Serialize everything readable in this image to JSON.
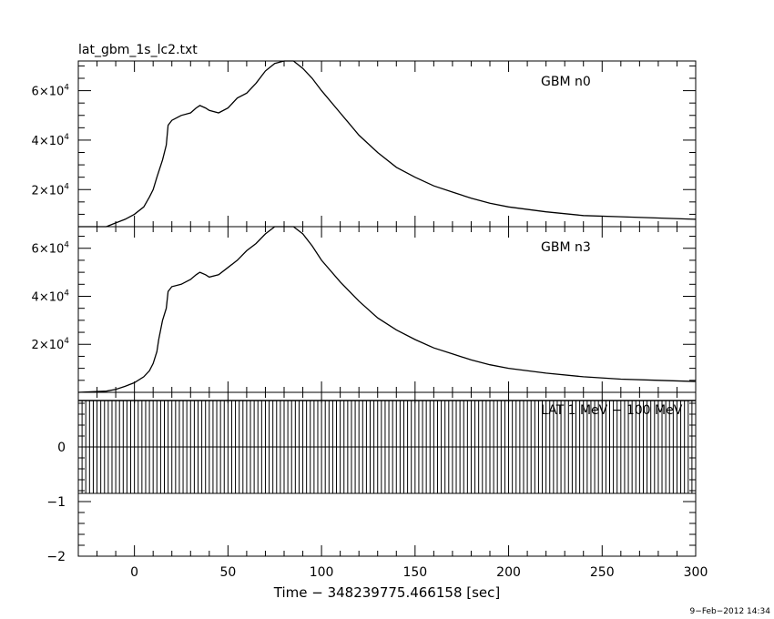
{
  "figure": {
    "title": "lat_gbm_1s_lc2.txt",
    "xlabel": "Time − 348239775.466158 [sec]",
    "timestamp": "9−Feb−2012 14:34"
  },
  "chart_data": [
    {
      "type": "line",
      "panel": "top",
      "title": "lat_gbm_1s_lc2.txt",
      "legend": "GBM n0",
      "xlim": [
        -30,
        300
      ],
      "ylim": [
        5000,
        72000
      ],
      "ytick_values": [
        20000,
        40000,
        60000
      ],
      "ytick_labels": [
        [
          "2",
          "4"
        ],
        [
          "4",
          "4"
        ],
        [
          "6",
          "4"
        ]
      ],
      "grid": false,
      "series": [
        {
          "name": "GBM n0",
          "x": [
            -30,
            -15,
            -10,
            -5,
            0,
            5,
            8,
            10,
            12,
            15,
            17,
            18,
            20,
            25,
            30,
            33,
            35,
            38,
            40,
            45,
            50,
            55,
            60,
            65,
            70,
            75,
            80,
            85,
            90,
            95,
            100,
            110,
            120,
            130,
            140,
            150,
            160,
            170,
            180,
            190,
            200,
            220,
            240,
            260,
            280,
            300
          ],
          "y": [
            4000,
            5000,
            6500,
            8000,
            10000,
            13000,
            17000,
            20000,
            25000,
            32000,
            38000,
            46000,
            48000,
            50000,
            51000,
            53000,
            54000,
            53000,
            52000,
            51000,
            53000,
            57000,
            59000,
            63000,
            68000,
            71000,
            72500,
            72000,
            69000,
            65000,
            60000,
            51000,
            42000,
            35000,
            29000,
            25000,
            21500,
            19000,
            16500,
            14500,
            13000,
            11000,
            9500,
            9000,
            8500,
            8000
          ]
        }
      ]
    },
    {
      "type": "line",
      "panel": "middle",
      "legend": "GBM n3",
      "xlim": [
        -30,
        300
      ],
      "ylim": [
        0,
        69000
      ],
      "ytick_values": [
        20000,
        40000,
        60000
      ],
      "ytick_labels": [
        [
          "2",
          "4"
        ],
        [
          "4",
          "4"
        ],
        [
          "6",
          "4"
        ]
      ],
      "grid": false,
      "series": [
        {
          "name": "GBM n3",
          "x": [
            -30,
            -15,
            -10,
            -5,
            0,
            5,
            8,
            10,
            12,
            13,
            15,
            17,
            18,
            20,
            25,
            30,
            33,
            35,
            38,
            40,
            45,
            50,
            55,
            60,
            65,
            70,
            75,
            80,
            85,
            90,
            95,
            100,
            110,
            120,
            130,
            140,
            150,
            160,
            170,
            180,
            190,
            200,
            220,
            240,
            260,
            280,
            300
          ],
          "y": [
            0,
            500,
            1200,
            2500,
            4000,
            6500,
            9000,
            12000,
            17000,
            22000,
            30000,
            35000,
            42000,
            44000,
            45000,
            47000,
            49000,
            50000,
            49000,
            48000,
            49000,
            52000,
            55000,
            59000,
            62000,
            66000,
            69000,
            70000,
            69500,
            66000,
            61000,
            55000,
            46000,
            38000,
            31000,
            26000,
            22000,
            18500,
            16000,
            13500,
            11500,
            10000,
            8000,
            6500,
            5500,
            5000,
            4500
          ]
        }
      ]
    },
    {
      "type": "bar",
      "panel": "bottom",
      "legend": "LAT 1 MeV − 100 MeV",
      "xlim": [
        -30,
        300
      ],
      "ylim": [
        -2,
        1
      ],
      "ytick_values": [
        -2,
        -1,
        0
      ],
      "ytick_labels": [
        "−2",
        "−1",
        "0"
      ],
      "xtick_values": [
        0,
        50,
        100,
        150,
        200,
        250,
        300
      ],
      "xtick_labels": [
        "0",
        "50",
        "100",
        "150",
        "200",
        "250",
        "300"
      ],
      "grid": false,
      "series": [
        {
          "name": "LAT 1 MeV − 100 MeV",
          "x_start": -30,
          "x_end": 300,
          "bin_width": 1,
          "value": 0,
          "error_low": -0.85,
          "error_high": 0.85
        }
      ]
    }
  ]
}
